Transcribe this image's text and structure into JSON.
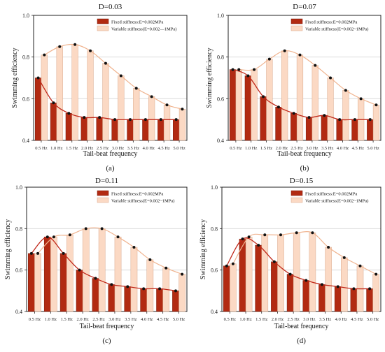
{
  "chart_data": [
    {
      "type": "bar",
      "title": "D=0.03",
      "panel_label": "(a)",
      "xlabel": "Tail-beat frequency",
      "ylabel": "Swimming efficiency",
      "ylim": [
        0.4,
        1.0
      ],
      "yticks": [
        "0.4",
        "0.6",
        "0.8",
        "1.0"
      ],
      "grid": true,
      "legend_position": "top-right",
      "categories": [
        "0.5 Hz",
        "1.0 Hz",
        "1.5 Hz",
        "2.0 Hz",
        "2.5 Hz",
        "3.0 Hz",
        "3.5 Hz",
        "4.0 Hz",
        "4.5 Hz",
        "5.0 Hz"
      ],
      "series": [
        {
          "name": "Fixed stiffness:E=0.002MPa",
          "values": [
            0.7,
            0.58,
            0.53,
            0.51,
            0.51,
            0.5,
            0.5,
            0.5,
            0.5,
            0.5
          ]
        },
        {
          "name": "Variable stiffness(E=0.002—1MPa)",
          "values": [
            0.81,
            0.85,
            0.86,
            0.83,
            0.77,
            0.71,
            0.65,
            0.61,
            0.57,
            0.55
          ]
        }
      ]
    },
    {
      "type": "bar",
      "title": "D=0.07",
      "panel_label": "(b)",
      "xlabel": "Tail-beat frequency",
      "ylabel": "Swimming efficiency",
      "ylim": [
        0.4,
        1.0
      ],
      "yticks": [
        "0.4",
        "0.6",
        "0.8",
        "1.0"
      ],
      "grid": true,
      "legend_position": "top-right",
      "categories": [
        "0.5 Hz",
        "1.0 Hz",
        "1.5 Hz",
        "2.0 Hz",
        "2.5 Hz",
        "3.0 Hz",
        "3.5 Hz",
        "4.0 Hz",
        "4.5 Hz",
        "5.0 Hz"
      ],
      "series": [
        {
          "name": "Fixed stiffness:E=0.002MPa",
          "values": [
            0.74,
            0.71,
            0.61,
            0.56,
            0.53,
            0.51,
            0.52,
            0.5,
            0.5,
            0.5
          ]
        },
        {
          "name": "Variable stiffness(E=0.002~1MPa)",
          "values": [
            0.74,
            0.74,
            0.79,
            0.83,
            0.81,
            0.76,
            0.7,
            0.64,
            0.6,
            0.57
          ]
        }
      ]
    },
    {
      "type": "bar",
      "title": "D=0.11",
      "panel_label": "(c)",
      "xlabel": "Tail-beat frequency",
      "ylabel": "Swimming efficiency",
      "ylim": [
        0.4,
        1.0
      ],
      "yticks": [
        "0.4",
        "0.6",
        "0.8",
        "1.0"
      ],
      "grid": true,
      "legend_position": "top-right",
      "categories": [
        "0.5 Hz",
        "1.0 Hz",
        "1.5 Hz",
        "2.0 Hz",
        "2.5 Hz",
        "3.0 Hz",
        "3.5 Hz",
        "4.0 Hz",
        "4.5 Hz",
        "5.0 Hz"
      ],
      "series": [
        {
          "name": "Fixed stiffness:E=0.002MPa",
          "values": [
            0.68,
            0.76,
            0.68,
            0.6,
            0.56,
            0.53,
            0.52,
            0.51,
            0.51,
            0.5
          ]
        },
        {
          "name": "Variable stiffness(E=0.002~1MPa)",
          "values": [
            0.68,
            0.76,
            0.77,
            0.8,
            0.8,
            0.76,
            0.71,
            0.65,
            0.61,
            0.58
          ]
        }
      ]
    },
    {
      "type": "bar",
      "title": "D=0.15",
      "panel_label": "(d)",
      "xlabel": "Tail-beat frequency",
      "ylabel": "Swimming efficiency",
      "ylim": [
        0.4,
        1.0
      ],
      "yticks": [
        "0.4",
        "0.6",
        "0.8",
        "1.0"
      ],
      "grid": true,
      "legend_position": "top-right",
      "categories": [
        "0.5 Hz",
        "1.0 Hz",
        "1.5 Hz",
        "2.0 Hz",
        "2.5 Hz",
        "3.0 Hz",
        "3.5 Hz",
        "4.0 Hz",
        "4.5 Hz",
        "5.0 Hz"
      ],
      "series": [
        {
          "name": "Fixed stiffness:E=0.002MPa",
          "values": [
            0.62,
            0.75,
            0.72,
            0.64,
            0.58,
            0.55,
            0.53,
            0.52,
            0.51,
            0.51
          ]
        },
        {
          "name": "Variable stiffness(E=0.002~1MPa)",
          "values": [
            0.63,
            0.76,
            0.77,
            0.77,
            0.78,
            0.78,
            0.71,
            0.66,
            0.62,
            0.58
          ]
        }
      ]
    }
  ],
  "colors": {
    "fixed_bar": "#b22a12",
    "fixed_bar_edge": "#7a1a0a",
    "fixed_line": "#c0281a",
    "variable_bar": "#fbd9c4",
    "variable_bar_edge": "#d9a88b",
    "variable_line": "#f0b38e",
    "marker": "#111111",
    "grid": "#d6d6d6"
  }
}
